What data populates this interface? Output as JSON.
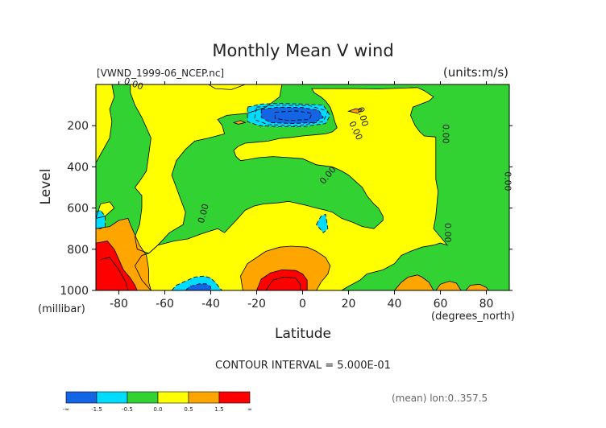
{
  "chart_data": {
    "type": "heatmap",
    "title": "Monthly Mean V wind",
    "file_label": "[VWND_1999-06_NCEP.nc]",
    "units_label": "(units:m/s)",
    "xlabel": "Latitude",
    "x_unit_label": "(degrees_north)",
    "ylabel": "Level",
    "y_unit_label": "(millibar)",
    "xlim": [
      -90,
      90
    ],
    "ylim": [
      1000,
      0
    ],
    "x_ticks": [
      -80,
      -60,
      -40,
      -20,
      0,
      20,
      40,
      60,
      80
    ],
    "y_ticks": [
      200,
      400,
      600,
      800,
      1000
    ],
    "contour_interval_text": "CONTOUR INTERVAL = 5.000E-01",
    "footer_note": "(mean) lon:0..357.5",
    "contour_labels": [
      "0.00",
      "0.00",
      "0.00",
      "0.00",
      "0.00",
      "0.00",
      "0.00",
      "0.00"
    ],
    "colorbar": {
      "colors": [
        "#1464e6",
        "#00dcff",
        "#32d232",
        "#ffff00",
        "#ffa500",
        "#ff0000"
      ],
      "tick_labels": [
        "-∞",
        "-1.5",
        "-0.5",
        "0.0",
        "0.5",
        "1.5",
        "∞"
      ]
    },
    "regions": [
      {
        "value": 0.0,
        "fill": "#32d232",
        "points": [
          [
            -90,
            0
          ],
          [
            90,
            0
          ],
          [
            90,
            1000
          ],
          [
            -90,
            1000
          ]
        ]
      },
      {
        "value": 0.25,
        "fill": "#ffff00",
        "points": [
          [
            -90,
            0
          ],
          [
            -83,
            0
          ],
          [
            -82,
            60
          ],
          [
            -84,
            120
          ],
          [
            -83,
            180
          ],
          [
            -84,
            260
          ],
          [
            -88,
            340
          ],
          [
            -90,
            380
          ]
        ]
      },
      {
        "value": 0.25,
        "fill": "#ffff00",
        "points": [
          [
            -88,
            580
          ],
          [
            -84,
            570
          ],
          [
            -82,
            600
          ],
          [
            -86,
            640
          ],
          [
            -90,
            650
          ]
        ]
      },
      {
        "value": 0.25,
        "fill": "#ffff00",
        "points": [
          [
            -75,
            0
          ],
          [
            -9,
            0
          ],
          [
            -10,
            60
          ],
          [
            -16,
            110
          ],
          [
            -24,
            140
          ],
          [
            -33,
            150
          ],
          [
            -37,
            170
          ],
          [
            -35,
            200
          ],
          [
            -34,
            240
          ],
          [
            -41,
            260
          ],
          [
            -47,
            275
          ],
          [
            -51,
            315
          ],
          [
            -55,
            370
          ],
          [
            -57,
            440
          ],
          [
            -55,
            500
          ],
          [
            -53,
            560
          ],
          [
            -51,
            620
          ],
          [
            -52,
            680
          ],
          [
            -58,
            720
          ],
          [
            -63,
            780
          ],
          [
            -67,
            820
          ],
          [
            -72,
            800
          ],
          [
            -73,
            740
          ],
          [
            -71,
            680
          ],
          [
            -70,
            600
          ],
          [
            -70,
            540
          ],
          [
            -73,
            500
          ],
          [
            -71,
            470
          ],
          [
            -68,
            420
          ],
          [
            -67,
            340
          ],
          [
            -66,
            260
          ],
          [
            -68,
            210
          ],
          [
            -70,
            160
          ],
          [
            -73,
            100
          ],
          [
            -75,
            40
          ]
        ]
      },
      {
        "value": 0.25,
        "fill": "#ffff00",
        "points": [
          [
            -41,
            0
          ],
          [
            -25,
            0
          ],
          [
            -31,
            25
          ],
          [
            -38,
            20
          ]
        ]
      },
      {
        "value": 0.25,
        "fill": "#ffff00",
        "points": [
          [
            4,
            20
          ],
          [
            22,
            20
          ],
          [
            33,
            22
          ],
          [
            50,
            15
          ],
          [
            53,
            30
          ],
          [
            57,
            60
          ],
          [
            55,
            80
          ],
          [
            48,
            110
          ],
          [
            47,
            150
          ],
          [
            49,
            200
          ],
          [
            51,
            230
          ],
          [
            53,
            250
          ],
          [
            58,
            255
          ],
          [
            58,
            350
          ],
          [
            58,
            460
          ],
          [
            59,
            520
          ],
          [
            58,
            640
          ],
          [
            57,
            700
          ],
          [
            63,
            780
          ],
          [
            60,
            770
          ],
          [
            57,
            780
          ],
          [
            52,
            790
          ],
          [
            47,
            810
          ],
          [
            43,
            830
          ],
          [
            40,
            870
          ],
          [
            35,
            900
          ],
          [
            28,
            920
          ],
          [
            25,
            950
          ],
          [
            20,
            980
          ],
          [
            17,
            1000
          ],
          [
            -66,
            1000
          ],
          [
            -70,
            950
          ],
          [
            -73,
            880
          ],
          [
            -70,
            830
          ],
          [
            -67,
            820
          ],
          [
            -63,
            780
          ],
          [
            -56,
            760
          ],
          [
            -50,
            750
          ],
          [
            -44,
            725
          ],
          [
            -37,
            700
          ],
          [
            -34,
            720
          ],
          [
            -29,
            660
          ],
          [
            -25,
            610
          ],
          [
            -21,
            590
          ],
          [
            -17,
            580
          ],
          [
            -11,
            575
          ],
          [
            -6,
            568
          ],
          [
            1,
            585
          ],
          [
            6,
            600
          ],
          [
            10,
            610
          ],
          [
            13,
            620
          ],
          [
            17,
            650
          ],
          [
            22,
            670
          ],
          [
            26,
            690
          ],
          [
            31,
            700
          ],
          [
            35,
            660
          ],
          [
            35,
            640
          ],
          [
            33,
            600
          ],
          [
            31,
            580
          ],
          [
            28,
            540
          ],
          [
            26,
            500
          ],
          [
            23,
            470
          ],
          [
            20,
            440
          ],
          [
            17,
            420
          ],
          [
            13,
            400
          ],
          [
            6,
            390
          ],
          [
            0,
            360
          ],
          [
            -6,
            355
          ],
          [
            -13,
            350
          ],
          [
            -19,
            355
          ],
          [
            -24,
            365
          ],
          [
            -27,
            370
          ],
          [
            -29,
            350
          ],
          [
            -30,
            320
          ],
          [
            -28,
            300
          ],
          [
            -25,
            285
          ],
          [
            -20,
            280
          ],
          [
            -15,
            275
          ],
          [
            -10,
            262
          ],
          [
            -5,
            257
          ],
          [
            0,
            250
          ],
          [
            5,
            245
          ],
          [
            10,
            240
          ],
          [
            13,
            230
          ],
          [
            15,
            210
          ],
          [
            14,
            180
          ],
          [
            13,
            140
          ],
          [
            12,
            110
          ],
          [
            10,
            80
          ],
          [
            8,
            60
          ],
          [
            5,
            40
          ]
        ]
      },
      {
        "value": 0.75,
        "fill": "#ffa500",
        "points": [
          [
            -90,
            700
          ],
          [
            -84,
            690
          ],
          [
            -80,
            660
          ],
          [
            -76,
            650
          ],
          [
            -75,
            680
          ],
          [
            -73,
            730
          ],
          [
            -71,
            780
          ],
          [
            -68,
            830
          ],
          [
            -67,
            900
          ],
          [
            -67,
            960
          ],
          [
            -66,
            1000
          ],
          [
            -90,
            1000
          ]
        ]
      },
      {
        "value": 0.75,
        "fill": "#ffa500",
        "points": [
          [
            -26,
            1000
          ],
          [
            -27,
            930
          ],
          [
            -24,
            870
          ],
          [
            -20,
            840
          ],
          [
            -16,
            810
          ],
          [
            -10,
            790
          ],
          [
            -5,
            785
          ],
          [
            2,
            790
          ],
          [
            6,
            810
          ],
          [
            10,
            840
          ],
          [
            12,
            880
          ],
          [
            11,
            920
          ],
          [
            8,
            960
          ],
          [
            6,
            1000
          ]
        ]
      },
      {
        "value": 0.75,
        "fill": "#ffa500",
        "points": [
          [
            40,
            1000
          ],
          [
            43,
            960
          ],
          [
            46,
            935
          ],
          [
            50,
            925
          ],
          [
            52,
            935
          ],
          [
            55,
            960
          ],
          [
            57,
            1000
          ]
        ]
      },
      {
        "value": 0.75,
        "fill": "#ffa500",
        "points": [
          [
            58,
            1000
          ],
          [
            60,
            970
          ],
          [
            64,
            955
          ],
          [
            67,
            965
          ],
          [
            69,
            1000
          ]
        ]
      },
      {
        "value": 0.75,
        "fill": "#ffa500",
        "points": [
          [
            71,
            1000
          ],
          [
            73,
            975
          ],
          [
            77,
            970
          ],
          [
            80,
            985
          ],
          [
            81,
            1000
          ]
        ]
      },
      {
        "value": 0.75,
        "fill": "#ffa500",
        "points": [
          [
            20,
            130
          ],
          [
            23,
            118
          ],
          [
            26,
            122
          ],
          [
            24,
            140
          ]
        ]
      },
      {
        "value": 0.75,
        "fill": "#ffa500",
        "points": [
          [
            -30,
            185
          ],
          [
            -27,
            175
          ],
          [
            -25,
            185
          ],
          [
            -28,
            193
          ]
        ]
      },
      {
        "value": 1.75,
        "fill": "#ff0000",
        "points": [
          [
            -90,
            770
          ],
          [
            -85,
            760
          ],
          [
            -82,
            800
          ],
          [
            -80,
            850
          ],
          [
            -78,
            900
          ],
          [
            -75,
            940
          ],
          [
            -73,
            975
          ],
          [
            -72,
            1000
          ],
          [
            -90,
            1000
          ]
        ]
      },
      {
        "value": 1.75,
        "fill": "#ff0000",
        "points": [
          [
            -20,
            1000
          ],
          [
            -18,
            945
          ],
          [
            -14,
            915
          ],
          [
            -9,
            900
          ],
          [
            -3,
            903
          ],
          [
            0,
            920
          ],
          [
            2,
            950
          ],
          [
            2,
            1000
          ]
        ]
      },
      {
        "value": -0.25,
        "fill": "#00dcff",
        "points": [
          [
            -24,
            110
          ],
          [
            -18,
            95
          ],
          [
            -10,
            92
          ],
          [
            0,
            95
          ],
          [
            9,
            100
          ],
          [
            12,
            150
          ],
          [
            10,
            190
          ],
          [
            0,
            205
          ],
          [
            -10,
            205
          ],
          [
            -19,
            200
          ],
          [
            -24,
            180
          ]
        ]
      },
      {
        "value": -0.25,
        "fill": "#00dcff",
        "points": [
          [
            -57,
            1000
          ],
          [
            -55,
            975
          ],
          [
            -52,
            960
          ],
          [
            -47,
            935
          ],
          [
            -43,
            930
          ],
          [
            -40,
            940
          ],
          [
            -38,
            960
          ],
          [
            -36,
            990
          ],
          [
            -35,
            1000
          ]
        ]
      },
      {
        "value": -0.25,
        "fill": "#00dcff",
        "points": [
          [
            6,
            680
          ],
          [
            8,
            640
          ],
          [
            10,
            630
          ],
          [
            11,
            700
          ],
          [
            9,
            720
          ]
        ]
      },
      {
        "value": -0.25,
        "fill": "#00dcff",
        "points": [
          [
            -90,
            620
          ],
          [
            -88,
            610
          ],
          [
            -86,
            640
          ],
          [
            -86,
            690
          ],
          [
            -88,
            700
          ],
          [
            -90,
            700
          ]
        ]
      },
      {
        "value": -1.5,
        "fill": "#1464e6",
        "points": [
          [
            -18,
            120
          ],
          [
            -10,
            110
          ],
          [
            0,
            112
          ],
          [
            7,
            125
          ],
          [
            9,
            160
          ],
          [
            5,
            185
          ],
          [
            -5,
            190
          ],
          [
            -14,
            185
          ],
          [
            -18,
            160
          ]
        ]
      },
      {
        "value": -1.5,
        "fill": "#1464e6",
        "points": [
          [
            -51,
            1000
          ],
          [
            -49,
            980
          ],
          [
            -45,
            968
          ],
          [
            -42,
            968
          ],
          [
            -40,
            982
          ],
          [
            -40,
            1000
          ]
        ]
      }
    ]
  }
}
